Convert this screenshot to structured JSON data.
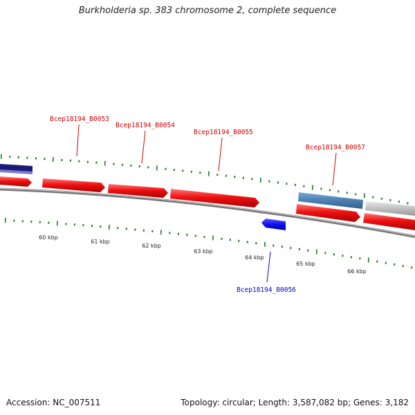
{
  "title": "Burkholderia sp. 383 chromosome 2, complete sequence",
  "footer": {
    "accession": "Accession: NC_007511",
    "summary": "Topology: circular; Length: 3,587,082 bp; Genes: 3,182"
  },
  "colors": {
    "backbone": "#888888",
    "ruler_tick": "#1a7a1a",
    "forward_gene": "#ee1111",
    "reverse_gene": "#1010ee",
    "label_forward": "#cc0000",
    "label_reverse": "#0000cc",
    "feature_dark_blue": "#1a1a7a",
    "feature_steel_blue": "#4a7fb0",
    "feature_gray": "#c0c0c0"
  },
  "ruler": {
    "labels": [
      "60 kbp",
      "61 kbp",
      "62 kbp",
      "63 kbp",
      "64 kbp",
      "65 kbp",
      "66 kbp"
    ]
  },
  "genes": [
    {
      "label": "Bcep18194_B0053",
      "strand": "+"
    },
    {
      "label": "Bcep18194_B0054",
      "strand": "+"
    },
    {
      "label": "Bcep18194_B0055",
      "strand": "+"
    },
    {
      "label": "Bcep18194_B0056",
      "strand": "-"
    },
    {
      "label": "Bcep18194_B0057",
      "strand": "+"
    }
  ]
}
